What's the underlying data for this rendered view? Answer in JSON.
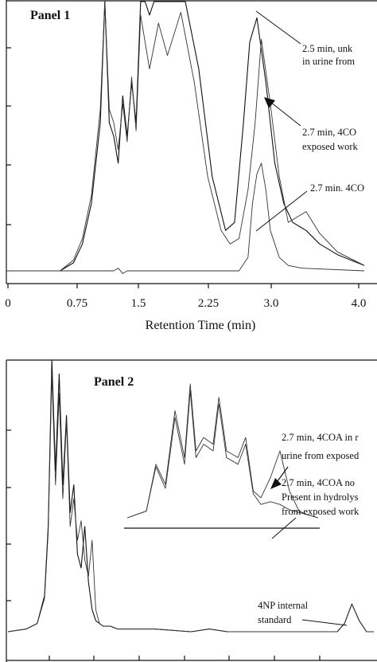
{
  "chart_data": [
    {
      "type": "line",
      "title": "Panel 1",
      "xlabel": "Retention Time (min)",
      "ylabel": "",
      "xlim": [
        0,
        4.0
      ],
      "x_ticks": [
        "0",
        "0.75",
        "1.5",
        "2.25",
        "3.0",
        "4.0"
      ],
      "grid": false,
      "series": [
        {
          "x": [
            0,
            0.6,
            0.75,
            0.85,
            0.95,
            1.05,
            1.1,
            1.15,
            1.2,
            1.25,
            1.3,
            1.35,
            1.4,
            1.45,
            1.5,
            1.55,
            1.6,
            1.65,
            1.75,
            1.85,
            2.0,
            2.15,
            2.3,
            2.45,
            2.55,
            2.65,
            2.72,
            2.8,
            2.9,
            3.0,
            3.1,
            3.2,
            3.35,
            3.5,
            3.7,
            4.0
          ],
          "y": [
            0.0,
            0.0,
            0.03,
            0.1,
            0.25,
            0.55,
            1.0,
            0.55,
            0.5,
            0.4,
            0.65,
            0.5,
            0.7,
            0.55,
            1.0,
            1.0,
            0.95,
            1.0,
            1.0,
            1.0,
            1.0,
            0.75,
            0.35,
            0.15,
            0.18,
            0.55,
            0.85,
            0.94,
            0.7,
            0.4,
            0.25,
            0.18,
            0.15,
            0.1,
            0.06,
            0.02
          ]
        },
        {
          "x": [
            0,
            0.6,
            0.75,
            0.85,
            0.95,
            1.05,
            1.1,
            1.15,
            1.2,
            1.25,
            1.3,
            1.35,
            1.4,
            1.45,
            1.5,
            1.55,
            1.6,
            1.7,
            1.8,
            1.95,
            2.1,
            2.25,
            2.4,
            2.5,
            2.6,
            2.7,
            2.78,
            2.85,
            2.95,
            3.05,
            3.15,
            3.25,
            3.35,
            3.5,
            3.7,
            4.0
          ],
          "y": [
            0.0,
            0.0,
            0.04,
            0.12,
            0.28,
            0.6,
            1.0,
            0.6,
            0.55,
            0.45,
            0.62,
            0.48,
            0.72,
            0.52,
            0.95,
            0.85,
            0.75,
            0.92,
            0.8,
            0.96,
            0.7,
            0.35,
            0.15,
            0.1,
            0.12,
            0.3,
            0.55,
            0.86,
            0.62,
            0.35,
            0.18,
            0.2,
            0.22,
            0.14,
            0.07,
            0.02
          ]
        },
        {
          "x": [
            0,
            1.2,
            1.25,
            1.3,
            1.35,
            2.6,
            2.7,
            2.75,
            2.8,
            2.85,
            2.9,
            2.95,
            3.05,
            3.15,
            3.3,
            4.0
          ],
          "y": [
            0.0,
            0.0,
            0.01,
            -0.01,
            0.0,
            0.0,
            0.05,
            0.25,
            0.36,
            0.4,
            0.3,
            0.15,
            0.05,
            0.02,
            0.01,
            0.0
          ]
        }
      ],
      "annotations": [
        {
          "text": "2.5 min, unk",
          "text2": "in urine from"
        },
        {
          "text": "2.7 min, 4CO",
          "text2": "exposed work"
        },
        {
          "text": "2.7 min. 4CO"
        }
      ]
    },
    {
      "type": "line",
      "title": "Panel 2",
      "xlabel": "",
      "ylabel": "",
      "series": [
        {
          "x": [
            0,
            0.05,
            0.08,
            0.1,
            0.11,
            0.12,
            0.13,
            0.14,
            0.15,
            0.16,
            0.17,
            0.18,
            0.19,
            0.2,
            0.21,
            0.22,
            0.23,
            0.24,
            0.25,
            0.26,
            0.28,
            0.3,
            0.4,
            0.5,
            0.55,
            0.6,
            0.7,
            0.8,
            0.9,
            0.92,
            0.94,
            0.96,
            0.98,
            1.0
          ],
          "y": [
            0.02,
            0.03,
            0.05,
            0.15,
            0.4,
            1.0,
            0.6,
            0.95,
            0.55,
            0.8,
            0.45,
            0.55,
            0.3,
            0.25,
            0.4,
            0.2,
            0.1,
            0.06,
            0.05,
            0.04,
            0.04,
            0.03,
            0.03,
            0.02,
            0.03,
            0.02,
            0.02,
            0.02,
            0.02,
            0.05,
            0.12,
            0.06,
            0.02,
            0.02
          ]
        },
        {
          "x": [
            0,
            0.05,
            0.08,
            0.1,
            0.11,
            0.12,
            0.13,
            0.14,
            0.15,
            0.16,
            0.17,
            0.18,
            0.19,
            0.2,
            0.21,
            0.22,
            0.23,
            0.24,
            0.25,
            0.26,
            0.28,
            0.3,
            0.4,
            0.5,
            0.55,
            0.6,
            0.7,
            0.8,
            0.9,
            0.92,
            0.94,
            0.96,
            0.98,
            1.0
          ],
          "y": [
            0.02,
            0.03,
            0.05,
            0.14,
            0.38,
            0.95,
            0.55,
            0.88,
            0.5,
            0.78,
            0.4,
            0.5,
            0.35,
            0.42,
            0.28,
            0.22,
            0.35,
            0.1,
            0.05,
            0.04,
            0.04,
            0.03,
            0.03,
            0.02,
            0.03,
            0.02,
            0.02,
            0.02,
            0.02,
            0.05,
            0.12,
            0.06,
            0.02,
            0.02
          ]
        }
      ],
      "inset_series": [
        {
          "x": [
            0,
            0.1,
            0.15,
            0.2,
            0.25,
            0.3,
            0.33,
            0.36,
            0.4,
            0.45,
            0.48,
            0.52,
            0.58,
            0.62,
            0.66,
            0.7,
            0.75,
            0.8,
            0.85,
            0.9,
            0.95,
            1.0
          ],
          "y": [
            0.0,
            0.05,
            0.4,
            0.25,
            0.8,
            0.45,
            1.0,
            0.5,
            0.6,
            0.55,
            0.9,
            0.5,
            0.45,
            0.6,
            0.2,
            0.15,
            0.3,
            0.5,
            0.2,
            0.05,
            0.02,
            0.0
          ]
        },
        {
          "x": [
            0,
            0.1,
            0.15,
            0.2,
            0.25,
            0.3,
            0.33,
            0.36,
            0.4,
            0.45,
            0.48,
            0.52,
            0.58,
            0.62,
            0.66,
            0.7,
            0.75,
            0.8,
            0.85,
            0.9,
            0.95,
            1.0
          ],
          "y": [
            0.0,
            0.05,
            0.38,
            0.22,
            0.75,
            0.4,
            0.95,
            0.45,
            0.55,
            0.5,
            0.85,
            0.45,
            0.4,
            0.55,
            0.18,
            0.1,
            0.12,
            0.1,
            0.06,
            0.04,
            0.02,
            0.0
          ]
        }
      ],
      "annotations": [
        {
          "text": "2.7 min, 4COA in r",
          "text2": "urine from exposed"
        },
        {
          "text": "2.7 min, 4COA no",
          "text2": "Present in hydrolys",
          "text3": "from exposed work"
        },
        {
          "text": "4NP internal",
          "text2": "standard"
        }
      ]
    }
  ]
}
